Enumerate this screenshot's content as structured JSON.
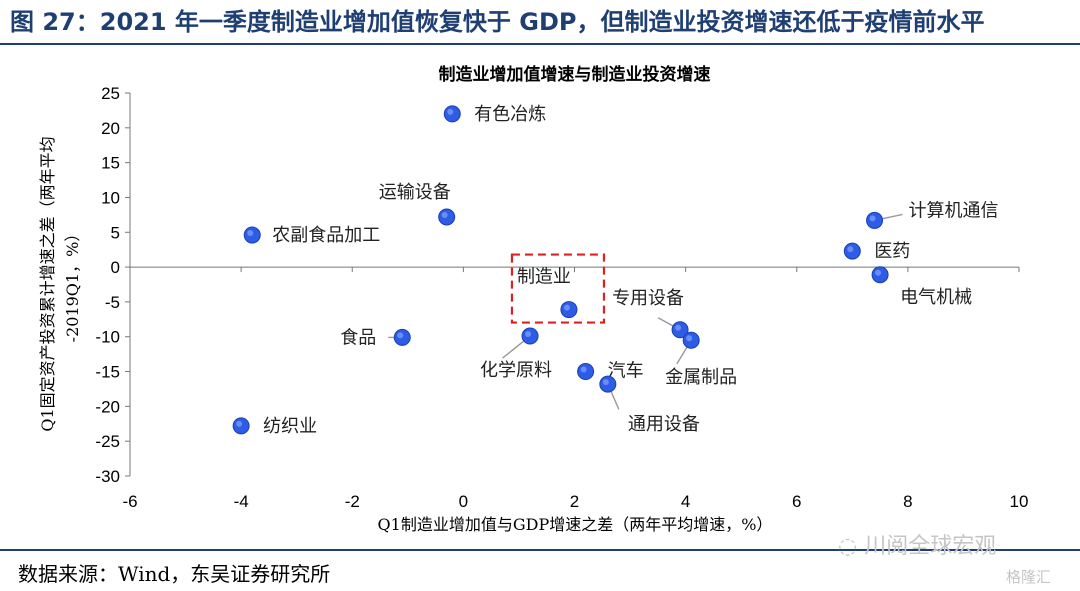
{
  "figure": {
    "title": "图 27：2021 年一季度制造业增加值恢复快于 GDP，但制造业投资增速还低于疫情前水平",
    "source": "数据来源：Wind，东吴证券研究所",
    "watermark": "川阅全球宏观",
    "watermark_corner": "格隆汇",
    "accent_color": "#1f3f73",
    "point_color": "#2e5ce6",
    "highlight_box_color": "#e02020"
  },
  "chart_data": {
    "type": "scatter",
    "title": "制造业增加值增速与制造业投资增速",
    "xlabel": "Q1制造业增加值与GDP增速之差（两年平均增速，%）",
    "ylabel_line1": "Q1固定资产投资累计增速之差（两年平均",
    "ylabel_line2": "-2019Q1，%）",
    "xlim": [
      -6,
      10
    ],
    "ylim": [
      -30,
      25
    ],
    "x_ticks": [
      "-6",
      "-4",
      "-2",
      "0",
      "2",
      "4",
      "6",
      "8",
      "10"
    ],
    "y_ticks": [
      "25",
      "20",
      "15",
      "10",
      "5",
      "0",
      "-5",
      "-10",
      "-15",
      "-20",
      "-25",
      "-30"
    ],
    "grid": false,
    "highlighted": "制造业",
    "points": [
      {
        "label": "有色冶炼",
        "x": -0.2,
        "y": 22.0
      },
      {
        "label": "运输设备",
        "x": -0.3,
        "y": 7.2
      },
      {
        "label": "农副食品加工",
        "x": -3.8,
        "y": 4.6
      },
      {
        "label": "计算机通信",
        "x": 7.4,
        "y": 6.7
      },
      {
        "label": "医药",
        "x": 7.0,
        "y": 2.3
      },
      {
        "label": "电气机械",
        "x": 7.5,
        "y": -1.1
      },
      {
        "label": "制造业",
        "x": 1.9,
        "y": -6.1
      },
      {
        "label": "专用设备",
        "x": 3.9,
        "y": -9.0
      },
      {
        "label": "金属制品",
        "x": 4.1,
        "y": -10.5
      },
      {
        "label": "食品",
        "x": -1.1,
        "y": -10.1
      },
      {
        "label": "化学原料",
        "x": 1.2,
        "y": -9.9
      },
      {
        "label": "汽车",
        "x": 2.2,
        "y": -15.0
      },
      {
        "label": "通用设备",
        "x": 2.6,
        "y": -16.8
      },
      {
        "label": "纺织业",
        "x": -4.0,
        "y": -22.8
      }
    ]
  }
}
